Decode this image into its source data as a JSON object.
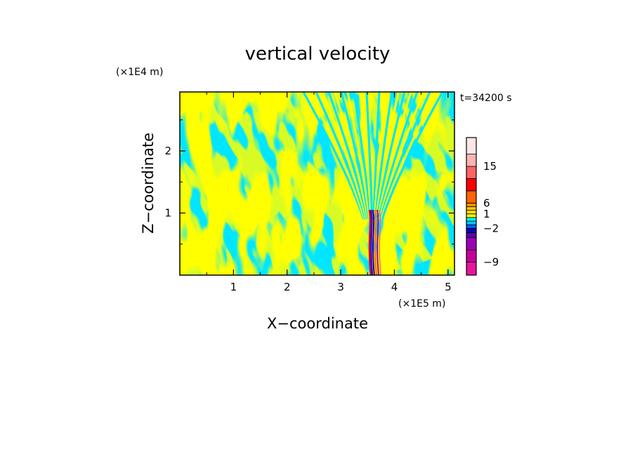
{
  "chart_data": {
    "type": "heatmap",
    "title": "vertical velocity",
    "time_label": "t=34200 s",
    "xlabel": "X−coordinate",
    "ylabel": "Z−coordinate",
    "x_unit_label": "(×1E5 m)",
    "y_unit_label": "(×1E4 m)",
    "xlim": [
      0,
      5.12
    ],
    "ylim": [
      0,
      2.95
    ],
    "x_ticks": [
      {
        "value": 1,
        "label": "1"
      },
      {
        "value": 2,
        "label": "2"
      },
      {
        "value": 3,
        "label": "3"
      },
      {
        "value": 4,
        "label": "4"
      },
      {
        "value": 5,
        "label": "5"
      }
    ],
    "y_ticks": [
      {
        "value": 1,
        "label": "1"
      },
      {
        "value": 2,
        "label": "2"
      }
    ],
    "colorbar": {
      "levels": [
        {
          "color": "#e8149b"
        },
        {
          "color": "#c8009b"
        },
        {
          "color": "#9b00b4"
        },
        {
          "color": "#5a00b4"
        },
        {
          "color": "#1400b4"
        },
        {
          "color": "#0064ff"
        },
        {
          "color": "#00c8ff"
        },
        {
          "color": "#00ffff"
        },
        {
          "color": "#ffff00"
        },
        {
          "color": "#ffe100"
        },
        {
          "color": "#ffc800"
        },
        {
          "color": "#ff9600"
        },
        {
          "color": "#ff6400"
        },
        {
          "color": "#ff0000"
        },
        {
          "color": "#ff6464"
        },
        {
          "color": "#ffb4b4"
        },
        {
          "color": "#ffe6e6"
        }
      ],
      "labels": [
        {
          "text": "−9",
          "value": -9
        },
        {
          "text": "−2",
          "value": -2
        },
        {
          "text": "1",
          "value": 1
        },
        {
          "text": "6",
          "value": 6
        },
        {
          "text": "15",
          "value": 15
        }
      ]
    },
    "dominant_colors": {
      "positive": "#ffff00",
      "negative": "#00e6ff"
    },
    "features": {
      "wave_core_x": 3.6,
      "wave_core_zmax": 1.05
    }
  }
}
